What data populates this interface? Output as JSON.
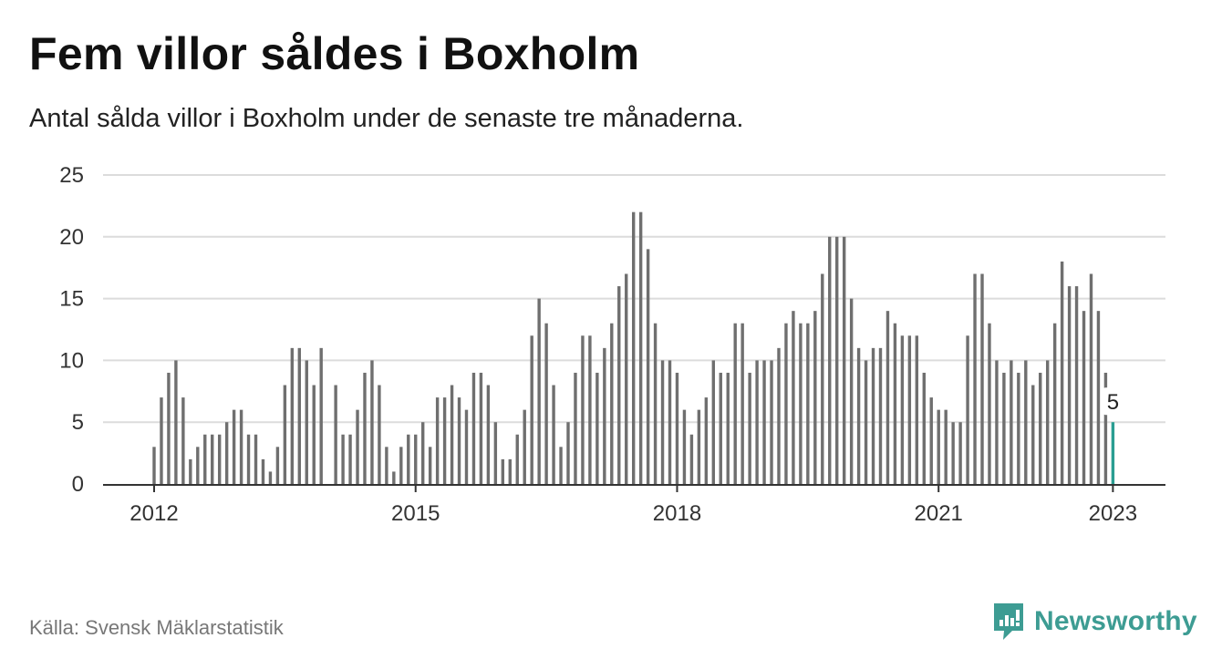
{
  "title": "Fem villor såldes i Boxholm",
  "subtitle": "Antal sålda villor i Boxholm under de senaste tre månaderna.",
  "source": "Källa: Svensk Mäklarstatistik",
  "brand": {
    "name": "Newsworthy",
    "icon": "newsworthy-logo-icon",
    "color": "#3d9c93"
  },
  "colors": {
    "bar": "#6f6f6f",
    "highlight": "#2a9d92",
    "grid": "#dcdcdc",
    "axis": "#333333"
  },
  "chart_data": {
    "type": "bar",
    "title": "Fem villor såldes i Boxholm",
    "subtitle": "Antal sålda villor i Boxholm under de senaste tre månaderna.",
    "xlabel": "",
    "ylabel": "",
    "ylim": [
      0,
      25
    ],
    "yticks": [
      0,
      5,
      10,
      15,
      20,
      25
    ],
    "xticks": [
      {
        "label": "2012",
        "year": 2012
      },
      {
        "label": "2015",
        "year": 2015
      },
      {
        "label": "2018",
        "year": 2018
      },
      {
        "label": "2021",
        "year": 2021
      },
      {
        "label": "2023",
        "year": 2023
      }
    ],
    "grid": true,
    "start_period": "2012-01",
    "period": "monthly",
    "values": [
      3,
      7,
      9,
      10,
      7,
      2,
      3,
      4,
      4,
      4,
      5,
      6,
      6,
      4,
      4,
      2,
      1,
      3,
      8,
      11,
      11,
      10,
      8,
      11,
      0,
      8,
      4,
      4,
      6,
      9,
      10,
      8,
      3,
      1,
      3,
      4,
      4,
      5,
      3,
      7,
      7,
      8,
      7,
      6,
      9,
      9,
      8,
      5,
      2,
      2,
      4,
      6,
      12,
      15,
      13,
      8,
      3,
      5,
      9,
      12,
      12,
      9,
      11,
      13,
      16,
      17,
      22,
      22,
      19,
      13,
      10,
      10,
      9,
      6,
      4,
      6,
      7,
      10,
      9,
      9,
      13,
      13,
      9,
      10,
      10,
      10,
      11,
      13,
      14,
      13,
      13,
      14,
      17,
      20,
      20,
      20,
      15,
      11,
      10,
      11,
      11,
      14,
      13,
      12,
      12,
      12,
      9,
      7,
      6,
      6,
      5,
      5,
      12,
      17,
      17,
      13,
      10,
      9,
      10,
      9,
      10,
      8,
      9,
      10,
      13,
      18,
      16,
      16,
      14,
      17,
      14,
      9,
      5
    ],
    "highlight_last": true,
    "annotation": {
      "label": "5",
      "value": 5
    }
  }
}
